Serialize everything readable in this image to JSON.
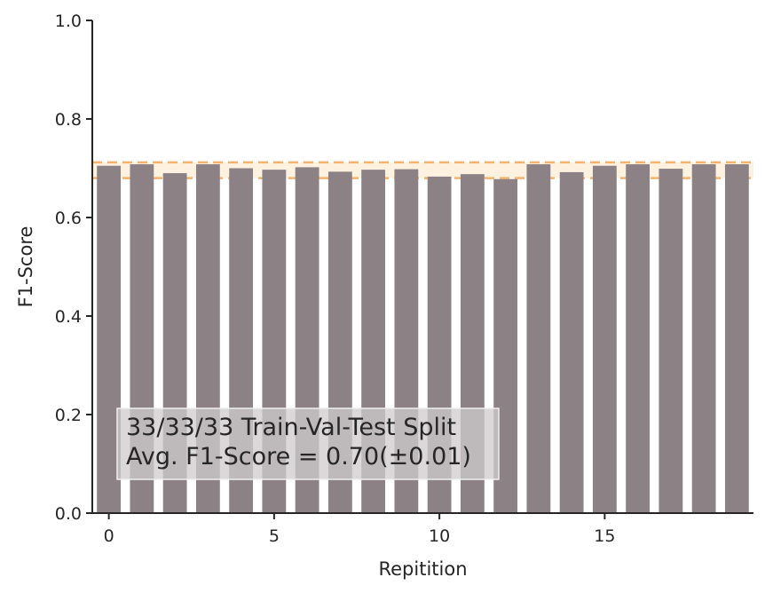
{
  "chart_data": {
    "type": "bar",
    "x": [
      0,
      1,
      2,
      3,
      4,
      5,
      6,
      7,
      8,
      9,
      10,
      11,
      12,
      13,
      14,
      15,
      16,
      17,
      18,
      19
    ],
    "values": [
      0.705,
      0.708,
      0.69,
      0.708,
      0.7,
      0.697,
      0.702,
      0.693,
      0.697,
      0.698,
      0.683,
      0.688,
      0.678,
      0.708,
      0.692,
      0.705,
      0.708,
      0.699,
      0.708,
      0.708
    ],
    "xlabel": "Repitition",
    "ylabel": "F1-Score",
    "xlim": [
      -0.5,
      19.5
    ],
    "ylim": [
      0,
      1.0
    ],
    "xticks": [
      0,
      5,
      10,
      15
    ],
    "yticks": [
      0.0,
      0.2,
      0.4,
      0.6,
      0.8,
      1.0
    ],
    "xtick_labels": [
      "0",
      "5",
      "10",
      "15"
    ],
    "ytick_labels": [
      "0.0",
      "0.2",
      "0.4",
      "0.6",
      "0.8",
      "1.0"
    ],
    "mean_band": {
      "lower": 0.68,
      "upper": 0.712
    },
    "annotation": {
      "line1": "33/33/33 Train-Val-Test Split",
      "line2": "Avg. F1-Score = 0.70(±0.01)"
    },
    "grid": false,
    "colors": {
      "bar": "#8c8285",
      "band_line": "#f5b36e",
      "band_fill": "#fdf1e0",
      "axis": "#262626"
    }
  }
}
